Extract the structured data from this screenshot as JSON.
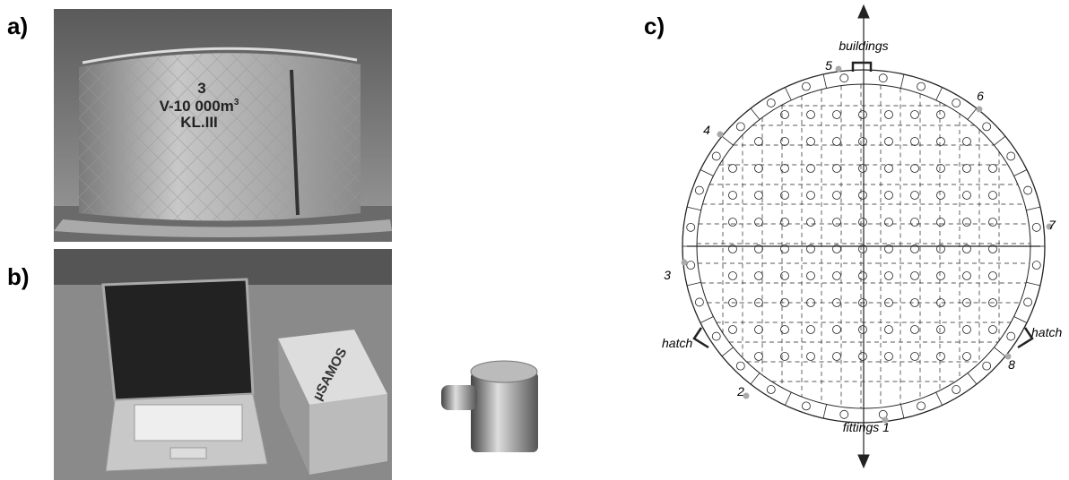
{
  "panel_a": {
    "label": "a)",
    "tank_number": "3",
    "tank_volume": "V-10 000m",
    "volume_exponent": "3",
    "tank_class": "KL.III"
  },
  "panel_b": {
    "label": "b)",
    "device_label": "µSAMOS"
  },
  "panel_c": {
    "label": "c)",
    "top_label": "buildings",
    "bottom_label": "fittings",
    "left_hatch": "hatch",
    "right_hatch": "hatch",
    "sensors": [
      "1",
      "2",
      "3",
      "4",
      "5",
      "6",
      "7",
      "8"
    ]
  }
}
